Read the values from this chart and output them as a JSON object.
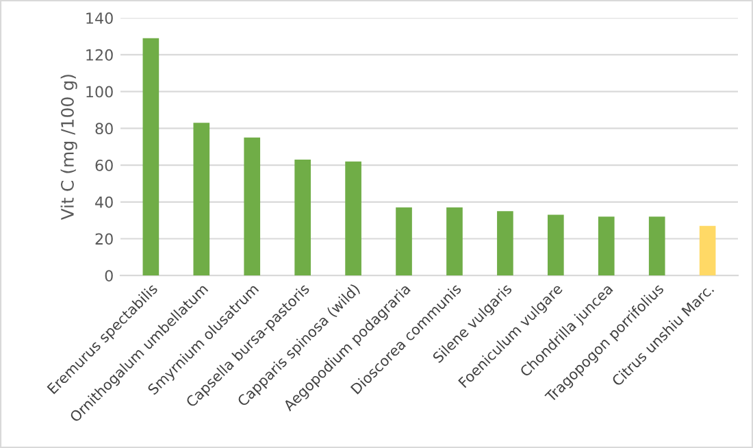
{
  "chart_data": {
    "type": "bar",
    "ylabel": "Vit C (mg /100 g)",
    "categories": [
      "Eremurus spectabilis",
      "Ornithogalum umbellatum",
      "Smyrnium olusatrum",
      "Capsella bursa-pastoris",
      "Capparis spinosa (wild)",
      "Aegopodium podagraria",
      "Dioscorea communis",
      "Silene vulgaris",
      "Foeniculum vulgare",
      "Chondrilla juncea",
      "Tragopogon porrifolius",
      "Citrus unshiu Marc."
    ],
    "values": [
      129,
      83,
      75,
      63,
      62,
      37,
      37,
      35,
      33,
      32,
      32,
      27
    ],
    "colors": [
      "#70ad47",
      "#70ad47",
      "#70ad47",
      "#70ad47",
      "#70ad47",
      "#70ad47",
      "#70ad47",
      "#70ad47",
      "#70ad47",
      "#70ad47",
      "#70ad47",
      "#ffd966"
    ],
    "ylim": [
      0,
      140
    ],
    "yticks": [
      0,
      20,
      40,
      60,
      80,
      100,
      120,
      140
    ],
    "grid": "y"
  }
}
